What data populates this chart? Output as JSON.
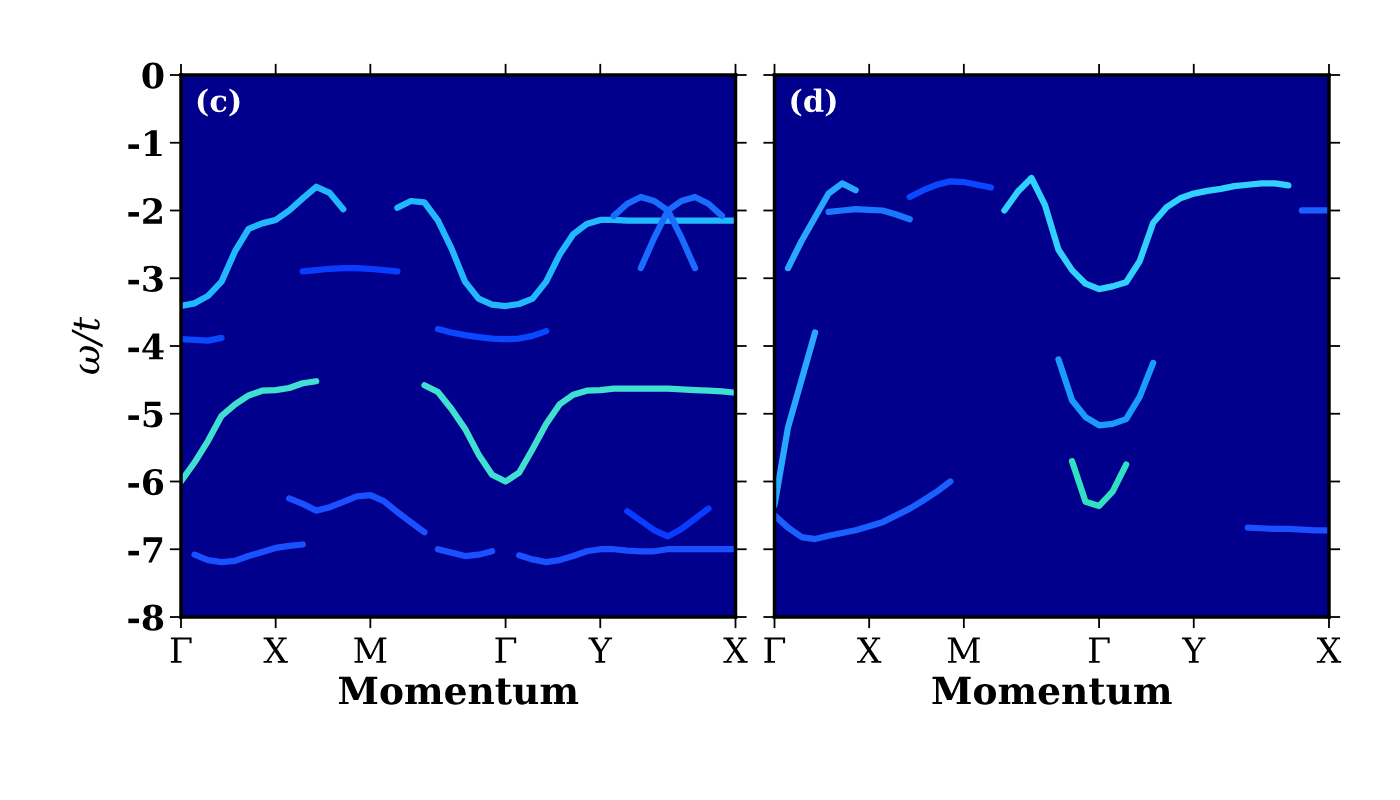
{
  "chart_data": [
    {
      "type": "line",
      "xlabel": "Momentum",
      "ylabel": "ω/t",
      "annotations": [
        "(c)"
      ],
      "ylim": [
        -8,
        0
      ],
      "categories": [
        "Γ",
        null,
        null,
        null,
        null,
        null,
        null,
        "X",
        null,
        null,
        null,
        null,
        null,
        null,
        "M",
        null,
        null,
        null,
        null,
        null,
        null,
        null,
        null,
        null,
        "Γ",
        null,
        null,
        null,
        null,
        null,
        null,
        "Y",
        null,
        null,
        null,
        null,
        null,
        null,
        null,
        null,
        null,
        "X"
      ],
      "yticks": [
        0,
        -1,
        -2,
        -3,
        -4,
        -5,
        -6,
        -7,
        -8
      ],
      "series": [
        {
          "color": "#22b8ff",
          "values": [
            -3.41,
            -3.37,
            -3.26,
            -3.05,
            -2.6,
            -2.27,
            -2.19,
            -2.14,
            -2.0,
            -1.82,
            -1.65,
            -1.74,
            -1.98,
            null,
            null,
            null,
            null,
            null,
            null,
            null,
            null,
            null,
            null,
            null,
            null,
            null,
            null,
            null,
            null,
            null,
            null,
            null,
            null,
            null,
            null,
            null,
            null,
            null,
            null,
            null,
            null,
            null
          ]
        },
        {
          "color": "#22b8ff",
          "values": [
            null,
            null,
            null,
            null,
            null,
            null,
            null,
            null,
            null,
            null,
            null,
            null,
            null,
            null,
            null,
            null,
            -1.96,
            -1.86,
            -1.88,
            -2.15,
            -2.56,
            -3.05,
            -3.3,
            -3.39,
            -3.41,
            -3.38,
            -3.3,
            -3.05,
            -2.65,
            -2.35,
            -2.2,
            -2.14,
            -2.14,
            -2.15,
            -2.15,
            -2.15,
            -2.15,
            -2.15,
            -2.15,
            -2.15,
            -2.15,
            -2.15
          ]
        },
        {
          "color": "#1a6cff",
          "values": [
            null,
            null,
            null,
            null,
            null,
            null,
            null,
            null,
            null,
            null,
            null,
            null,
            null,
            null,
            null,
            null,
            null,
            null,
            null,
            null,
            null,
            null,
            null,
            null,
            null,
            null,
            null,
            null,
            null,
            null,
            null,
            null,
            -2.08,
            -1.9,
            -1.8,
            -1.86,
            -2.0,
            -2.4,
            -2.85,
            null,
            null,
            null
          ]
        },
        {
          "color": "#1a6cff",
          "values": [
            null,
            null,
            null,
            null,
            null,
            null,
            null,
            null,
            null,
            null,
            null,
            null,
            null,
            null,
            null,
            null,
            null,
            null,
            null,
            null,
            null,
            null,
            null,
            null,
            null,
            null,
            null,
            null,
            null,
            null,
            null,
            null,
            null,
            null,
            -2.85,
            -2.4,
            -2.0,
            -1.86,
            -1.8,
            -1.9,
            -2.08,
            null
          ]
        },
        {
          "color": "#0a3cff",
          "values": [
            null,
            null,
            null,
            null,
            null,
            null,
            null,
            null,
            null,
            -2.9,
            -2.88,
            -2.86,
            -2.85,
            -2.85,
            -2.86,
            -2.88,
            -2.9,
            null,
            null,
            null,
            null,
            null,
            null,
            null,
            null,
            null,
            null,
            null,
            null,
            null,
            null,
            null,
            null,
            null,
            null,
            null,
            null,
            null,
            null,
            null,
            null,
            null
          ]
        },
        {
          "color": "#0a48ff",
          "values": [
            -3.9,
            -3.91,
            -3.92,
            -3.88,
            null,
            null,
            null,
            null,
            null,
            null,
            null,
            null,
            null,
            null,
            null,
            null,
            null,
            null,
            null,
            null,
            null,
            null,
            null,
            null,
            null,
            null,
            null,
            null,
            null,
            null,
            null,
            null,
            null,
            null,
            null,
            null,
            null,
            null,
            null,
            null,
            null,
            null
          ]
        },
        {
          "color": "#0a48ff",
          "values": [
            null,
            null,
            null,
            null,
            null,
            null,
            null,
            null,
            null,
            null,
            null,
            null,
            null,
            null,
            null,
            null,
            null,
            null,
            null,
            -3.75,
            -3.8,
            -3.84,
            -3.87,
            -3.89,
            -3.9,
            -3.89,
            -3.85,
            -3.78,
            null,
            null,
            null,
            null,
            null,
            null,
            null,
            null,
            null,
            null,
            null,
            null,
            null,
            null
          ]
        },
        {
          "color": "#40e0d0",
          "values": [
            -6.0,
            -5.72,
            -5.4,
            -5.03,
            -4.86,
            -4.73,
            -4.66,
            -4.65,
            -4.62,
            -4.55,
            -4.52,
            null,
            null,
            null,
            null,
            null,
            null,
            null,
            null,
            null,
            null,
            null,
            null,
            null,
            null,
            null,
            null,
            null,
            null,
            null,
            null,
            null,
            null,
            null,
            null,
            null,
            null,
            null,
            null,
            null,
            null,
            null
          ]
        },
        {
          "color": "#40e0d0",
          "values": [
            null,
            null,
            null,
            null,
            null,
            null,
            null,
            null,
            null,
            null,
            null,
            null,
            null,
            null,
            null,
            null,
            null,
            null,
            -4.58,
            -4.68,
            -4.93,
            -5.22,
            -5.6,
            -5.9,
            -6.0,
            -5.87,
            -5.52,
            -5.15,
            -4.86,
            -4.72,
            -4.66,
            -4.65,
            -4.63,
            -4.63,
            -4.63,
            -4.63,
            -4.63,
            -4.64,
            -4.65,
            -4.66,
            -4.67,
            -4.69
          ]
        },
        {
          "color": "#1a50ff",
          "values": [
            null,
            null,
            null,
            null,
            null,
            null,
            null,
            null,
            -6.25,
            -6.33,
            -6.43,
            -6.38,
            -6.3,
            -6.22,
            -6.2,
            -6.29,
            -6.45,
            -6.6,
            -6.75,
            null,
            null,
            null,
            null,
            null,
            null,
            null,
            null,
            null,
            null,
            null,
            null,
            null,
            null,
            null,
            null,
            null,
            null,
            null,
            null,
            null,
            null,
            null
          ]
        },
        {
          "color": "#1a50ff",
          "values": [
            null,
            -7.08,
            -7.16,
            -7.19,
            -7.17,
            -7.1,
            -7.04,
            -6.98,
            -6.95,
            -6.93,
            null,
            null,
            null,
            null,
            null,
            null,
            null,
            null,
            null,
            null,
            null,
            null,
            null,
            null,
            null,
            null,
            null,
            null,
            null,
            null,
            null,
            null,
            null,
            null,
            null,
            null,
            null,
            null,
            null,
            null,
            null,
            null
          ]
        },
        {
          "color": "#1a50ff",
          "values": [
            null,
            null,
            null,
            null,
            null,
            null,
            null,
            null,
            null,
            null,
            null,
            null,
            null,
            null,
            null,
            null,
            null,
            null,
            null,
            -7.0,
            -7.05,
            -7.1,
            -7.08,
            -7.03,
            null,
            null,
            null,
            null,
            null,
            null,
            null,
            null,
            null,
            null,
            null,
            null,
            null,
            null,
            null,
            null,
            null,
            null
          ]
        },
        {
          "color": "#1a50ff",
          "values": [
            null,
            null,
            null,
            null,
            null,
            null,
            null,
            null,
            null,
            null,
            null,
            null,
            null,
            null,
            null,
            null,
            null,
            null,
            null,
            null,
            null,
            null,
            null,
            null,
            null,
            -7.09,
            -7.15,
            -7.19,
            -7.16,
            -7.1,
            -7.03,
            -7.0,
            -7.0,
            -7.02,
            -7.03,
            -7.03,
            -7.0,
            -7.0,
            -7.0,
            -7.0,
            -7.0,
            -7.0
          ]
        },
        {
          "color": "#0a3cff",
          "values": [
            null,
            null,
            null,
            null,
            null,
            null,
            null,
            null,
            null,
            null,
            null,
            null,
            null,
            null,
            null,
            null,
            null,
            null,
            null,
            null,
            null,
            null,
            null,
            null,
            null,
            null,
            null,
            null,
            null,
            null,
            null,
            null,
            null,
            -6.44,
            -6.58,
            -6.72,
            -6.81,
            -6.7,
            -6.55,
            -6.4,
            null,
            null
          ]
        }
      ]
    },
    {
      "type": "line",
      "xlabel": "Momentum",
      "annotations": [
        "(d)"
      ],
      "ylim": [
        -8,
        0
      ],
      "tick_labels": "x",
      "categories": [
        "Γ",
        null,
        null,
        null,
        null,
        null,
        null,
        "X",
        null,
        null,
        null,
        null,
        null,
        null,
        "M",
        null,
        null,
        null,
        null,
        null,
        null,
        null,
        null,
        null,
        "Γ",
        null,
        null,
        null,
        null,
        null,
        null,
        "Y",
        null,
        null,
        null,
        null,
        null,
        null,
        null,
        null,
        null,
        "X"
      ],
      "yticks": [
        0,
        -1,
        -2,
        -3,
        -4,
        -5,
        -6,
        -7,
        -8
      ],
      "series": [
        {
          "color": "#28a8ff",
          "values": [
            -6.35,
            -5.2,
            -4.5,
            -3.8,
            null,
            null,
            null,
            null,
            null,
            null,
            null,
            null,
            null,
            null,
            null,
            null,
            null,
            null,
            null,
            null,
            null,
            null,
            null,
            null,
            null,
            null,
            null,
            null,
            null,
            null,
            null,
            null,
            null,
            null,
            null,
            null,
            null,
            null,
            null,
            null,
            null,
            null
          ]
        },
        {
          "color": "#28a8ff",
          "values": [
            null,
            -2.85,
            -2.45,
            -2.1,
            -1.75,
            -1.6,
            -1.7,
            null,
            null,
            null,
            null,
            null,
            null,
            null,
            null,
            null,
            null,
            null,
            null,
            null,
            null,
            null,
            null,
            null,
            null,
            null,
            null,
            null,
            null,
            null,
            null,
            null,
            null,
            null,
            null,
            null,
            null,
            null,
            null,
            null,
            null,
            null
          ]
        },
        {
          "color": "#1a78ff",
          "values": [
            null,
            null,
            null,
            null,
            -2.02,
            -2.0,
            -1.98,
            -1.99,
            -2.0,
            -2.06,
            -2.13,
            null,
            null,
            null,
            null,
            null,
            null,
            null,
            null,
            null,
            null,
            null,
            null,
            null,
            null,
            null,
            null,
            null,
            null,
            null,
            null,
            null,
            null,
            null,
            null,
            null,
            null,
            null,
            null,
            null,
            null,
            null
          ]
        },
        {
          "color": "#0a48ff",
          "values": [
            null,
            null,
            null,
            null,
            null,
            null,
            null,
            null,
            null,
            null,
            -1.8,
            -1.7,
            -1.62,
            -1.57,
            -1.58,
            -1.62,
            -1.66,
            null,
            null,
            null,
            null,
            null,
            null,
            null,
            null,
            null,
            null,
            null,
            null,
            null,
            null,
            null,
            null,
            null,
            null,
            null,
            null,
            null,
            null,
            null,
            null,
            null
          ]
        },
        {
          "color": "#30d0ff",
          "values": [
            null,
            null,
            null,
            null,
            null,
            null,
            null,
            null,
            null,
            null,
            null,
            null,
            null,
            null,
            null,
            null,
            null,
            -2.0,
            -1.72,
            -1.52,
            -1.92,
            -2.58,
            -2.88,
            -3.08,
            -3.16,
            -3.12,
            -3.06,
            -2.75,
            -2.18,
            -1.95,
            -1.82,
            -1.75,
            -1.71,
            -1.68,
            -1.64,
            -1.62,
            -1.6,
            -1.6,
            -1.63,
            null,
            null,
            null
          ]
        },
        {
          "color": "#1a60ff",
          "values": [
            null,
            null,
            null,
            null,
            null,
            null,
            null,
            null,
            null,
            null,
            null,
            null,
            null,
            null,
            null,
            null,
            null,
            null,
            null,
            null,
            null,
            null,
            null,
            null,
            null,
            null,
            null,
            null,
            null,
            null,
            null,
            null,
            null,
            null,
            null,
            null,
            null,
            null,
            null,
            -2.0,
            -2.0,
            -2.0
          ]
        },
        {
          "color": "#1a9cff",
          "values": [
            null,
            null,
            null,
            null,
            null,
            null,
            null,
            null,
            null,
            null,
            null,
            null,
            null,
            null,
            null,
            null,
            null,
            null,
            null,
            null,
            null,
            -4.2,
            -4.8,
            -5.05,
            -5.17,
            -5.15,
            -5.08,
            -4.75,
            -4.25,
            null,
            null,
            null,
            null,
            null,
            null,
            null,
            null,
            null,
            null,
            null,
            null,
            null
          ]
        },
        {
          "color": "#30e0c0",
          "values": [
            null,
            null,
            null,
            null,
            null,
            null,
            null,
            null,
            null,
            null,
            null,
            null,
            null,
            null,
            null,
            null,
            null,
            null,
            null,
            null,
            null,
            null,
            -5.7,
            -6.3,
            -6.36,
            -6.15,
            -5.75,
            null,
            null,
            null,
            null,
            null,
            null,
            null,
            null,
            null,
            null,
            null,
            null,
            null,
            null,
            null
          ]
        },
        {
          "color": "#1a60ff",
          "values": [
            -6.5,
            -6.68,
            -6.82,
            -6.85,
            -6.8,
            -6.76,
            -6.72,
            -6.66,
            -6.6,
            -6.5,
            -6.4,
            -6.28,
            -6.15,
            -6.0,
            null,
            null,
            null,
            null,
            null,
            null,
            null,
            null,
            null,
            null,
            null,
            null,
            null,
            null,
            null,
            null,
            null,
            null,
            null,
            null,
            null,
            null,
            null,
            null,
            null,
            null,
            null,
            null
          ]
        },
        {
          "color": "#1a50ff",
          "values": [
            null,
            null,
            null,
            null,
            null,
            null,
            null,
            null,
            null,
            null,
            null,
            null,
            null,
            null,
            null,
            null,
            null,
            null,
            null,
            null,
            null,
            null,
            null,
            null,
            null,
            null,
            null,
            null,
            null,
            null,
            null,
            null,
            null,
            null,
            null,
            -6.68,
            -6.69,
            -6.7,
            -6.7,
            -6.71,
            -6.72,
            -6.72
          ]
        }
      ]
    }
  ]
}
